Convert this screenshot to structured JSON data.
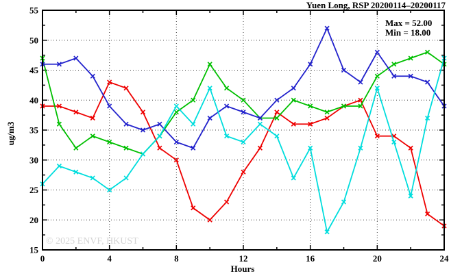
{
  "figure": {
    "title": "Yuen Long, RSP 20200114–20200117",
    "stats": {
      "max_label": "Max = 52.00",
      "min_label": "Min = 18.00"
    },
    "watermark": "© 2025 ENVF, HKUST"
  },
  "chart_data": {
    "type": "line",
    "title": "Yuen Long, RSP 20200114–20200117",
    "xlabel": "Hours",
    "ylabel": "ug/m3",
    "xlim": [
      0,
      24
    ],
    "ylim": [
      15,
      55
    ],
    "x_major_ticks": [
      0,
      4,
      8,
      12,
      16,
      20,
      24
    ],
    "x_minor_ticks": [
      2,
      6,
      10,
      14,
      18,
      22
    ],
    "y_major_ticks": [
      15,
      20,
      25,
      30,
      35,
      40,
      45,
      50,
      55
    ],
    "y_minor_ticks": [
      17.5,
      22.5,
      27.5,
      32.5,
      37.5,
      42.5,
      47.5,
      52.5
    ],
    "grid": "dotted lines at interior major ticks",
    "legend": "none",
    "max": 52.0,
    "min": 18.0,
    "marker": "x-cross",
    "x": [
      0,
      1,
      2,
      3,
      4,
      5,
      6,
      7,
      8,
      9,
      10,
      11,
      12,
      13,
      14,
      15,
      16,
      17,
      18,
      19,
      20,
      21,
      22,
      23,
      24
    ],
    "series": [
      {
        "name": "red",
        "color": "#ee0000",
        "values": [
          39,
          39,
          38,
          37,
          43,
          42,
          38,
          32,
          30,
          22,
          20,
          23,
          28,
          32,
          38,
          36,
          36,
          37,
          39,
          40,
          34,
          34,
          32,
          21,
          19
        ]
      },
      {
        "name": "green",
        "color": "#00bf00",
        "values": [
          47,
          36,
          32,
          34,
          33,
          32,
          31,
          34,
          38,
          40,
          46,
          42,
          40,
          37,
          37,
          40,
          39,
          38,
          39,
          39,
          44,
          46,
          47,
          48,
          46
        ]
      },
      {
        "name": "blue",
        "color": "#2222cc",
        "values": [
          46,
          46,
          47,
          44,
          39,
          36,
          35,
          36,
          33,
          32,
          37,
          39,
          38,
          37,
          40,
          42,
          46,
          52,
          45,
          43,
          48,
          44,
          44,
          43,
          39
        ]
      },
      {
        "name": "cyan",
        "color": "#00dddd",
        "values": [
          26,
          29,
          28,
          27,
          25,
          27,
          31,
          34,
          39,
          36,
          42,
          34,
          33,
          36,
          34,
          27,
          32,
          18,
          23,
          32,
          42,
          33,
          24,
          37,
          47
        ]
      }
    ]
  }
}
